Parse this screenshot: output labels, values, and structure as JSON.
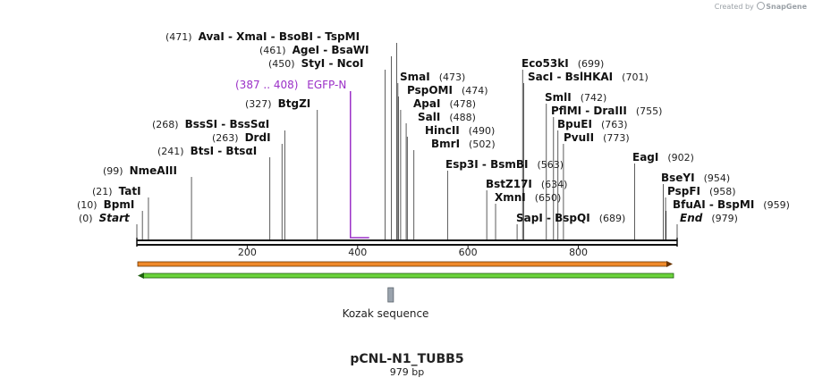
{
  "watermark": {
    "created_by": "Created by",
    "brand": "SnapGene"
  },
  "plasmid": {
    "name": "pCNL-N1_TUBB5",
    "length_label": "979 bp",
    "length": 979
  },
  "ruler": {
    "ticks": [
      200,
      400,
      600,
      800
    ]
  },
  "colors": {
    "primer": "#9b30c7",
    "orf_orange": "#f08a2a",
    "orf_green": "#6ad23a",
    "feature_gray": "#9aa3ad"
  },
  "primer": {
    "range": "(387 .. 408)",
    "name": "EGFP-N",
    "start": 387,
    "end": 408
  },
  "features": [
    {
      "name": "Kozak sequence",
      "start": 455,
      "end": 465
    }
  ],
  "sites": [
    {
      "pos": 0,
      "label": "(0)",
      "name": "Start",
      "italic": true
    },
    {
      "pos": 10,
      "label": "(10)",
      "name": "BpmI"
    },
    {
      "pos": 21,
      "label": "(21)",
      "name": "TatI"
    },
    {
      "pos": 99,
      "label": "(99)",
      "name": "NmeAIII"
    },
    {
      "pos": 241,
      "label": "(241)",
      "name": "BtsI - BtsαI"
    },
    {
      "pos": 263,
      "label": "(263)",
      "name": "DrdI"
    },
    {
      "pos": 268,
      "label": "(268)",
      "name": "BssSI - BssSαI"
    },
    {
      "pos": 327,
      "label": "(327)",
      "name": "BtgZI"
    },
    {
      "pos": 450,
      "label": "(450)",
      "name": "StyI - NcoI"
    },
    {
      "pos": 461,
      "label": "(461)",
      "name": "AgeI - BsaWI"
    },
    {
      "pos": 471,
      "label": "(471)",
      "name": "AvaI - XmaI - BsoBI - TspMI"
    },
    {
      "pos": 473,
      "label": "(473)",
      "name": "SmaI"
    },
    {
      "pos": 474,
      "label": "(474)",
      "name": "PspOMI"
    },
    {
      "pos": 478,
      "label": "(478)",
      "name": "ApaI"
    },
    {
      "pos": 488,
      "label": "(488)",
      "name": "SalI"
    },
    {
      "pos": 490,
      "label": "(490)",
      "name": "HincII"
    },
    {
      "pos": 502,
      "label": "(502)",
      "name": "BmrI"
    },
    {
      "pos": 563,
      "label": "(563)",
      "name": "Esp3I - BsmBI"
    },
    {
      "pos": 634,
      "label": "(634)",
      "name": "BstZ17I"
    },
    {
      "pos": 650,
      "label": "(650)",
      "name": "XmnI"
    },
    {
      "pos": 689,
      "label": "(689)",
      "name": "SapI - BspQI"
    },
    {
      "pos": 699,
      "label": "(699)",
      "name": "Eco53kI"
    },
    {
      "pos": 701,
      "label": "(701)",
      "name": "SacI - BslHKAI"
    },
    {
      "pos": 742,
      "label": "(742)",
      "name": "SmlI"
    },
    {
      "pos": 755,
      "label": "(755)",
      "name": "PflMI - DraIII"
    },
    {
      "pos": 763,
      "label": "(763)",
      "name": "BpuEI"
    },
    {
      "pos": 773,
      "label": "(773)",
      "name": "PvuII"
    },
    {
      "pos": 902,
      "label": "(902)",
      "name": "EagI"
    },
    {
      "pos": 954,
      "label": "(954)",
      "name": "BseYI"
    },
    {
      "pos": 958,
      "label": "(958)",
      "name": "PspFI"
    },
    {
      "pos": 959,
      "label": "(959)",
      "name": "BfuAI - BspMI"
    },
    {
      "pos": 979,
      "label": "(979)",
      "name": "End",
      "italic": true
    }
  ]
}
